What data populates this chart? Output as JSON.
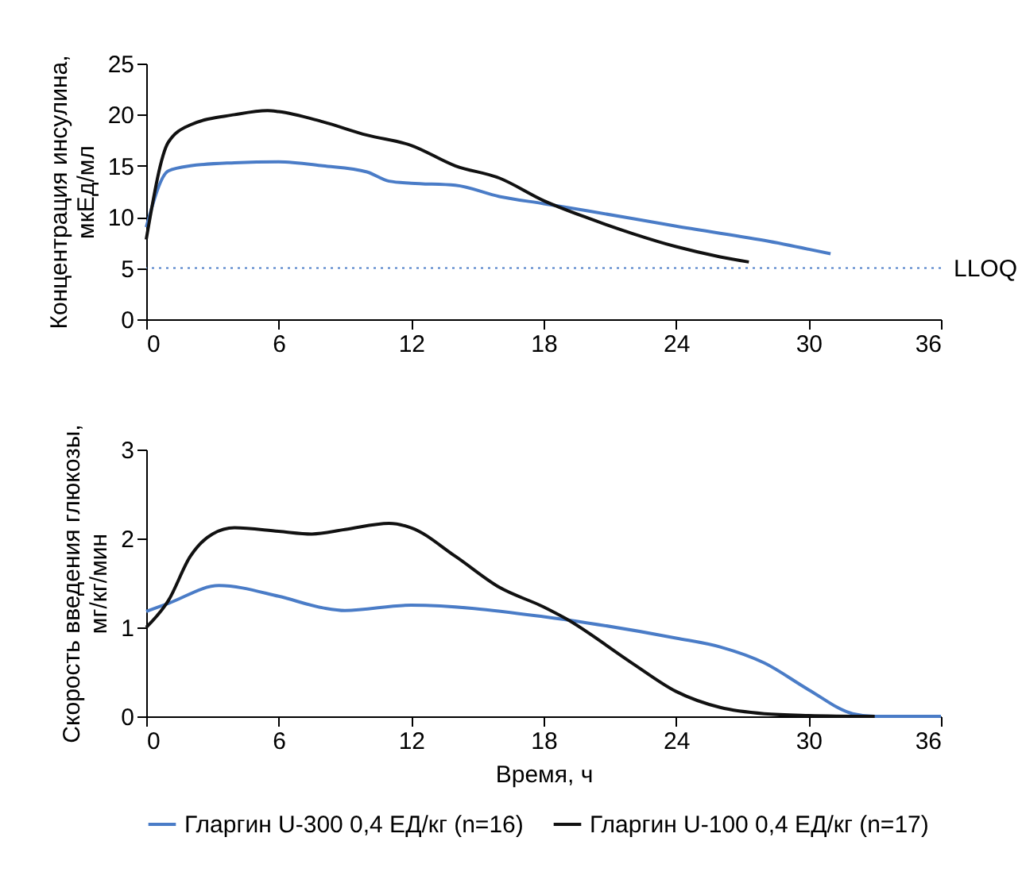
{
  "chart_data": [
    {
      "type": "line",
      "ylabel": "Концентрация инсулина,\nмкЕд/мл",
      "xlim": [
        0,
        36
      ],
      "xticks": [
        0,
        6,
        12,
        18,
        24,
        30,
        36
      ],
      "ylim": [
        0,
        25
      ],
      "yticks": [
        0,
        5,
        10,
        15,
        20,
        25
      ],
      "grid": false,
      "legend": false,
      "line_style": "solid",
      "ref_lines": [
        {
          "axis": "y",
          "value": 5,
          "label": "LLOQ",
          "color": "#4a7cc7",
          "line_style": "dotted"
        }
      ],
      "series": [
        {
          "color": "#4a7cc7",
          "x": [
            0,
            1,
            2,
            4,
            6,
            8,
            10,
            11,
            12,
            14,
            16,
            18,
            20,
            24,
            28,
            31
          ],
          "values": [
            9,
            14.5,
            15,
            15.3,
            15.4,
            15,
            14.4,
            13.5,
            13.3,
            13.1,
            12,
            11.3,
            10.6,
            9.1,
            7.7,
            6.4
          ]
        },
        {
          "color": "#111111",
          "x": [
            0,
            1,
            2,
            4,
            5.5,
            6,
            8,
            10,
            12,
            14,
            16,
            18,
            20,
            22,
            24,
            26,
            27.3
          ],
          "values": [
            7.8,
            17.3,
            19,
            20,
            20.4,
            20.3,
            19.3,
            18,
            17,
            15,
            13.8,
            11.6,
            9.9,
            8.4,
            7.1,
            6.1,
            5.6
          ]
        }
      ]
    },
    {
      "type": "line",
      "xlabel": "Время, ч",
      "ylabel": "Скорость введения глюкозы,\nмг/кг/мин",
      "xlim": [
        0,
        36
      ],
      "xticks": [
        0,
        6,
        12,
        18,
        24,
        30,
        36
      ],
      "ylim": [
        0,
        3
      ],
      "yticks": [
        0,
        1,
        2,
        3
      ],
      "grid": false,
      "legend": "bottom",
      "line_style": "solid",
      "series": [
        {
          "name": "Гларгин U-300 0,4 ЕД/кг (n=16)",
          "color": "#4a7cc7",
          "x": [
            0,
            1,
            3.3,
            6,
            8,
            9,
            12,
            18,
            20,
            24,
            26,
            28,
            30,
            32,
            33,
            36
          ],
          "values": [
            1.18,
            1.27,
            1.47,
            1.35,
            1.22,
            1.19,
            1.25,
            1.12,
            1.05,
            0.88,
            0.78,
            0.6,
            0.3,
            0.03,
            0,
            0
          ]
        },
        {
          "name": "Гларгин U-100 0,4 ЕД/кг (n=17)",
          "color": "#111111",
          "x": [
            0,
            1,
            2,
            3,
            4,
            6,
            7.5,
            9,
            11,
            12,
            14,
            16,
            18,
            19,
            22,
            24,
            26,
            28,
            30,
            33
          ],
          "values": [
            1,
            1.3,
            1.8,
            2.05,
            2.12,
            2.08,
            2.05,
            2.1,
            2.17,
            2.12,
            1.8,
            1.45,
            1.23,
            1.1,
            0.6,
            0.28,
            0.1,
            0.03,
            0.01,
            0
          ]
        }
      ]
    }
  ]
}
